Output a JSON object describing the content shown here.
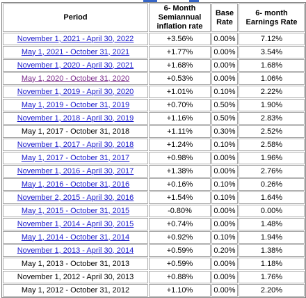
{
  "header": {
    "period": "Period",
    "inflation": "6- Month Semiannual inflation rate",
    "base": "Base Rate",
    "earnings": "6- month Earnings Rate"
  },
  "rows": [
    {
      "period": "November 1, 2021 - April 30, 2022",
      "link": true,
      "visited": false,
      "inflation": "+3.56%",
      "base": "0.00%",
      "earnings": "7.12%",
      "negative": false
    },
    {
      "period": "May 1, 2021 - October 31, 2021",
      "link": true,
      "visited": false,
      "inflation": "+1.77%",
      "base": "0.00%",
      "earnings": "3.54%",
      "negative": false
    },
    {
      "period": "November 1, 2020 - April 30, 2021",
      "link": true,
      "visited": false,
      "inflation": "+1.68%",
      "base": "0.00%",
      "earnings": "1.68%",
      "negative": false
    },
    {
      "period": "May 1, 2020 - October 31, 2020",
      "link": true,
      "visited": true,
      "inflation": "+0.53%",
      "base": "0.00%",
      "earnings": "1.06%",
      "negative": false
    },
    {
      "period": "November 1, 2019 - April 30, 2020",
      "link": true,
      "visited": false,
      "inflation": "+1.01%",
      "base": "0.10%",
      "earnings": "2.22%",
      "negative": false
    },
    {
      "period": "May 1, 2019 - October 31, 2019",
      "link": true,
      "visited": false,
      "inflation": "+0.70%",
      "base": "0.50%",
      "earnings": "1.90%",
      "negative": false
    },
    {
      "period": "November 1, 2018 - April 30, 2019",
      "link": true,
      "visited": false,
      "inflation": "+1.16%",
      "base": "0.50%",
      "earnings": "2.83%",
      "negative": false
    },
    {
      "period": "May 1, 2017 - October 31, 2018",
      "link": false,
      "visited": false,
      "inflation": "+1.11%",
      "base": "0.30%",
      "earnings": "2.52%",
      "negative": false
    },
    {
      "period": "November 1, 2017 - April 30, 2018",
      "link": true,
      "visited": false,
      "inflation": "+1.24%",
      "base": "0.10%",
      "earnings": "2.58%",
      "negative": false
    },
    {
      "period": "May 1, 2017 - October 31, 2017",
      "link": true,
      "visited": false,
      "inflation": "+0.98%",
      "base": "0.00%",
      "earnings": "1.96%",
      "negative": false
    },
    {
      "period": "November 1, 2016 - April 30, 2017",
      "link": true,
      "visited": false,
      "inflation": "+1.38%",
      "base": "0.00%",
      "earnings": "2.76%",
      "negative": false
    },
    {
      "period": "May 1, 2016 - October 31, 2016",
      "link": true,
      "visited": false,
      "inflation": "+0.16%",
      "base": "0.10%",
      "earnings": "0.26%",
      "negative": false
    },
    {
      "period": "November 2, 2015 - April 30, 2016",
      "link": true,
      "visited": false,
      "inflation": "+1.54%",
      "base": "0.10%",
      "earnings": "1.64%",
      "negative": false
    },
    {
      "period": "May 1, 2015 - October 31, 2015",
      "link": true,
      "visited": false,
      "inflation": "-0.80%",
      "base": "0.00%",
      "earnings": "0.00%",
      "negative": true
    },
    {
      "period": "November 1, 2014 - April 30, 2015",
      "link": true,
      "visited": false,
      "inflation": "+0.74%",
      "base": "0.00%",
      "earnings": "1.48%",
      "negative": false
    },
    {
      "period": "May 1, 2014 - October 31, 2014",
      "link": true,
      "visited": false,
      "inflation": "+0.92%",
      "base": "0.10%",
      "earnings": "1.94%",
      "negative": false
    },
    {
      "period": "November 1, 2013 - April 30, 2014",
      "link": true,
      "visited": false,
      "inflation": "+0.59%",
      "base": "0.20%",
      "earnings": "1.38%",
      "negative": false
    },
    {
      "period": "May 1, 2013 - October 31, 2013",
      "link": false,
      "visited": false,
      "inflation": "+0.59%",
      "base": "0.00%",
      "earnings": "1.18%",
      "negative": false
    },
    {
      "period": "November 1, 2012 - April 30, 2013",
      "link": false,
      "visited": false,
      "inflation": "+0.88%",
      "base": "0.00%",
      "earnings": "1.76%",
      "negative": false
    },
    {
      "period": "May 1, 2012 - October 31, 2012",
      "link": false,
      "visited": false,
      "inflation": "+1.10%",
      "base": "0.00%",
      "earnings": "2.20%",
      "negative": false
    }
  ],
  "colors": {
    "link": "#1a1acc",
    "visited_link": "#7a2a8a",
    "negative": "#ff0000",
    "cell_border": "#a9a9a9"
  }
}
